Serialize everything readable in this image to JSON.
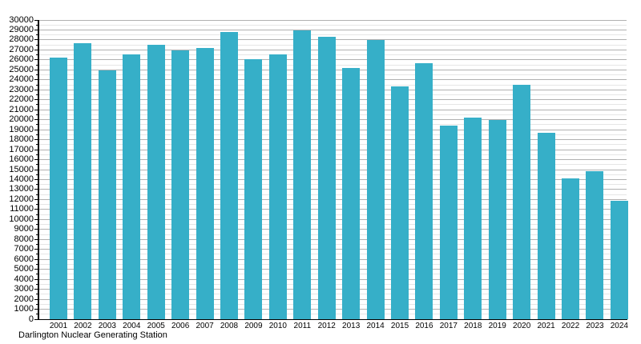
{
  "chart_data": {
    "type": "bar",
    "title": "",
    "caption": "Darlington Nuclear Generating Station",
    "categories": [
      "2001",
      "2002",
      "2003",
      "2004",
      "2005",
      "2006",
      "2007",
      "2008",
      "2009",
      "2010",
      "2011",
      "2012",
      "2013",
      "2014",
      "2015",
      "2016",
      "2017",
      "2018",
      "2019",
      "2020",
      "2021",
      "2022",
      "2023",
      "2024"
    ],
    "values": [
      26200,
      27650,
      24950,
      26570,
      27550,
      26970,
      27220,
      28800,
      26070,
      26550,
      28930,
      28330,
      25150,
      27960,
      23340,
      25690,
      19450,
      20220,
      20000,
      23500,
      18700,
      14130,
      14830,
      11910
    ],
    "xlabel": "",
    "ylabel": "",
    "ylim": [
      0,
      30000
    ],
    "ytick_step": 1000,
    "y_minor_step": 500,
    "grid": true,
    "legend": "none",
    "bar_color": "#36afc8",
    "major_grid_color": "#b0b0b0",
    "minor_grid_color": "#e6e6e6",
    "axis_color": "#000000"
  }
}
